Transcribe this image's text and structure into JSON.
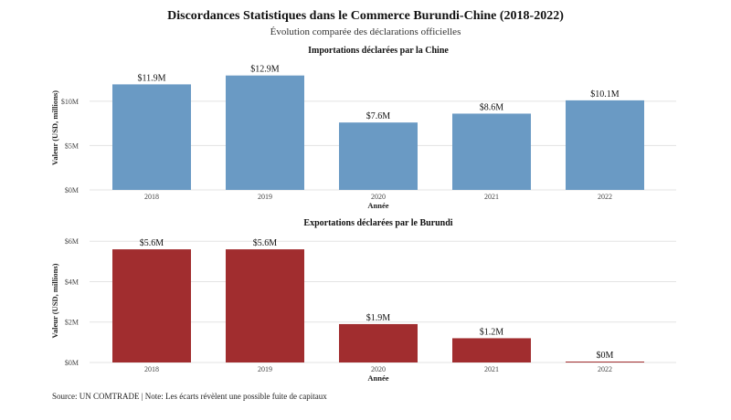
{
  "header": {
    "title": "Discordances Statistiques dans le Commerce Burundi-Chine (2018-2022)",
    "subtitle": "Évolution comparée des déclarations officielles"
  },
  "footer": {
    "source": "Source: UN COMTRADE | Note: Les écarts révèlent une possible fuite de capitaux"
  },
  "chart_data": [
    {
      "type": "bar",
      "title": "Importations déclarées par la Chine",
      "xlabel": "Année",
      "ylabel": "Valeur (USD, millions)",
      "categories": [
        "2018",
        "2019",
        "2020",
        "2021",
        "2022"
      ],
      "values": [
        11.9,
        12.9,
        7.6,
        8.6,
        10.1
      ],
      "data_labels": [
        "$11.9M",
        "$12.9M",
        "$7.6M",
        "$8.6M",
        "$10.1M"
      ],
      "yticks": [
        0,
        5,
        10
      ],
      "ytick_labels": [
        "$0M",
        "$5M",
        "$10M"
      ],
      "ylim": [
        0,
        14
      ],
      "color": "#6a9ac4",
      "grid": true
    },
    {
      "type": "bar",
      "title": "Exportations déclarées par le Burundi",
      "xlabel": "Année",
      "ylabel": "Valeur (USD, millions)",
      "categories": [
        "2018",
        "2019",
        "2020",
        "2021",
        "2022"
      ],
      "values": [
        5.6,
        5.6,
        1.9,
        1.2,
        0.03
      ],
      "data_labels": [
        "$5.6M",
        "$5.6M",
        "$1.9M",
        "$1.2M",
        "$0M"
      ],
      "yticks": [
        0,
        2,
        4,
        6
      ],
      "ytick_labels": [
        "$0M",
        "$2M",
        "$4M",
        "$6M"
      ],
      "ylim": [
        0,
        6.1
      ],
      "color": "#a12d2f",
      "grid": true
    }
  ]
}
